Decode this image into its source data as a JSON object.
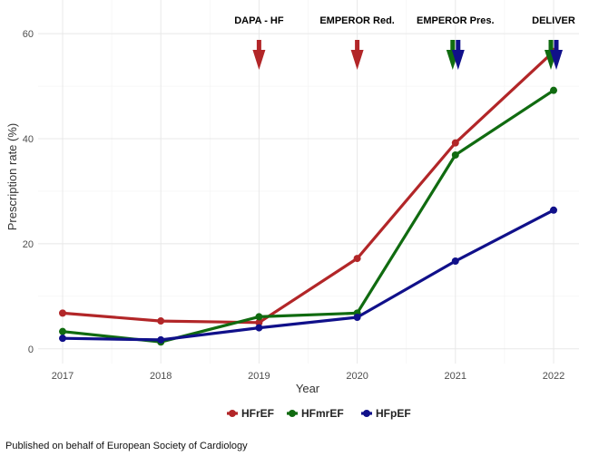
{
  "chart_data": {
    "type": "line",
    "x": [
      "2017",
      "2018",
      "2019",
      "2020",
      "2021",
      "2022"
    ],
    "series": [
      {
        "name": "HFrEF",
        "color": "#b22628",
        "values": [
          6.8,
          5.3,
          5.0,
          17.2,
          39.2,
          56.6
        ]
      },
      {
        "name": "HFmrEF",
        "color": "#106b10",
        "values": [
          3.3,
          1.3,
          6.1,
          6.8,
          36.9,
          49.2
        ]
      },
      {
        "name": "HFpEF",
        "color": "#10108a",
        "values": [
          2.0,
          1.7,
          4.0,
          6.0,
          16.7,
          26.4
        ]
      }
    ],
    "xlabel": "Year",
    "ylabel": "Prescription rate (%)",
    "yticks": [
      0,
      20,
      40,
      60
    ],
    "ylim": [
      -2.8,
      66.4
    ],
    "grid": true,
    "legend_position": "bottom",
    "annotations": [
      {
        "label": "DAPA - HF",
        "x": "2019",
        "colors": [
          "#b22628"
        ]
      },
      {
        "label": "EMPEROR Red.",
        "x": "2020",
        "colors": [
          "#b22628"
        ]
      },
      {
        "label": "EMPEROR Pres.",
        "x": "2021",
        "colors": [
          "#106b10",
          "#10108a"
        ]
      },
      {
        "label": "DELIVER",
        "x": "2022",
        "colors": [
          "#106b10",
          "#10108a"
        ]
      }
    ]
  },
  "footer": "Published on behalf of European Society of Cardiology"
}
